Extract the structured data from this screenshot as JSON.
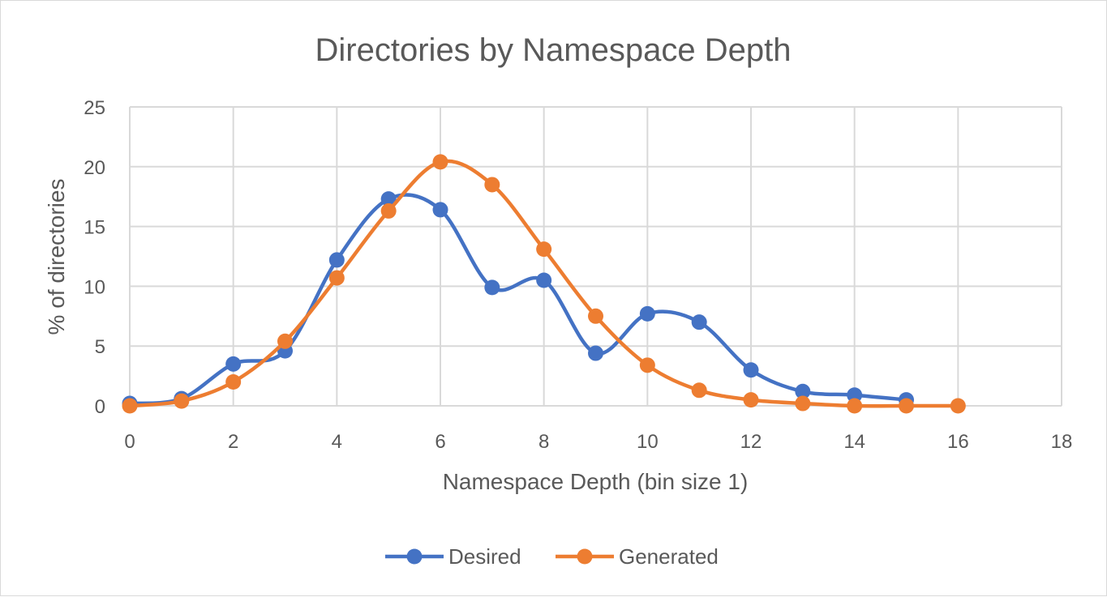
{
  "chart_data": {
    "type": "line",
    "smooth": true,
    "title": "Directories by Namespace Depth",
    "xlabel": "Namespace Depth (bin size 1)",
    "ylabel": "% of directories",
    "xlim": [
      0,
      18
    ],
    "ylim": [
      0,
      25
    ],
    "x_ticks": [
      0,
      2,
      4,
      6,
      8,
      10,
      12,
      14,
      16,
      18
    ],
    "y_ticks": [
      0,
      5,
      10,
      15,
      20,
      25
    ],
    "grid": true,
    "legend_position": "bottom",
    "series": [
      {
        "name": "Desired",
        "color": "#4472c4",
        "x": [
          0,
          1,
          2,
          3,
          4,
          5,
          6,
          7,
          8,
          9,
          10,
          11,
          12,
          13,
          14,
          15
        ],
        "y": [
          0.2,
          0.6,
          3.5,
          4.6,
          12.2,
          17.3,
          16.4,
          9.9,
          10.5,
          4.4,
          7.7,
          7.0,
          3.0,
          1.2,
          0.9,
          0.5
        ]
      },
      {
        "name": "Generated",
        "color": "#ed7d31",
        "x": [
          0,
          1,
          2,
          3,
          4,
          5,
          6,
          7,
          8,
          9,
          10,
          11,
          12,
          13,
          14,
          15,
          16
        ],
        "y": [
          0.0,
          0.4,
          2.0,
          5.4,
          10.7,
          16.3,
          20.4,
          18.5,
          13.1,
          7.5,
          3.4,
          1.3,
          0.5,
          0.2,
          0.0,
          0.0,
          0.0
        ]
      }
    ]
  }
}
